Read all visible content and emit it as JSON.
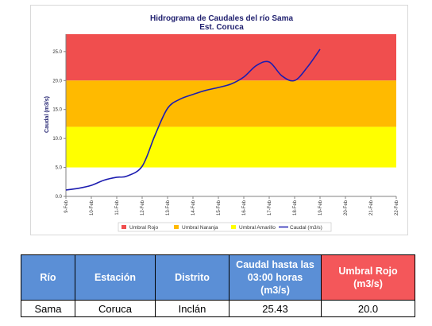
{
  "chart_data": {
    "type": "line",
    "title": "Hidrograma de Caudales del río Sama",
    "subtitle": "Est. Coruca",
    "ylabel": "Caudal (m3/s)",
    "xlabel": "",
    "ylim": [
      0,
      28
    ],
    "yticks": [
      "0.0",
      "5.0",
      "10.0",
      "15.0",
      "20.0",
      "25.0"
    ],
    "ytick_values": [
      0,
      5,
      10,
      15,
      20,
      25
    ],
    "categories": [
      "9-Feb",
      "10-Feb",
      "11-Feb",
      "12-Feb",
      "13-Feb",
      "14-Feb",
      "15-Feb",
      "16-Feb",
      "17-Feb",
      "18-Feb",
      "19-Feb",
      "20-Feb",
      "21-Feb",
      "22-Feb"
    ],
    "bands": [
      {
        "name": "Umbral Rojo",
        "from": 20,
        "to": 28,
        "color": "#f04e4e"
      },
      {
        "name": "Umbral Naranja",
        "from": 12,
        "to": 20,
        "color": "#ffba00"
      },
      {
        "name": "Umbral Amarillo",
        "from": 5,
        "to": 12,
        "color": "#ffff00"
      }
    ],
    "series": [
      {
        "name": "Caudal (m3/s)",
        "color": "#1d1db0",
        "x": [
          0,
          0.5,
          1,
          1.5,
          2,
          2.4,
          3,
          3.5,
          4,
          4.5,
          5,
          5.5,
          6,
          6.5,
          7,
          7.5,
          8,
          8.5,
          9,
          9.5,
          10
        ],
        "y": [
          1.1,
          1.4,
          1.9,
          2.8,
          3.3,
          3.5,
          5.2,
          10.5,
          15.2,
          16.8,
          17.6,
          18.3,
          18.8,
          19.4,
          20.6,
          22.6,
          23.2,
          20.8,
          20.0,
          22.3,
          25.4
        ]
      }
    ],
    "legend_position": "bottom",
    "grid": false
  },
  "table": {
    "headers": [
      "Río",
      "Estación",
      "Distrito",
      "Caudal hasta las 03:00 horas (m3/s)",
      "Umbral  Rojo (m3/s)"
    ],
    "row": [
      "Sama",
      "Coruca",
      "Inclán",
      "25.43",
      "20.0"
    ]
  }
}
